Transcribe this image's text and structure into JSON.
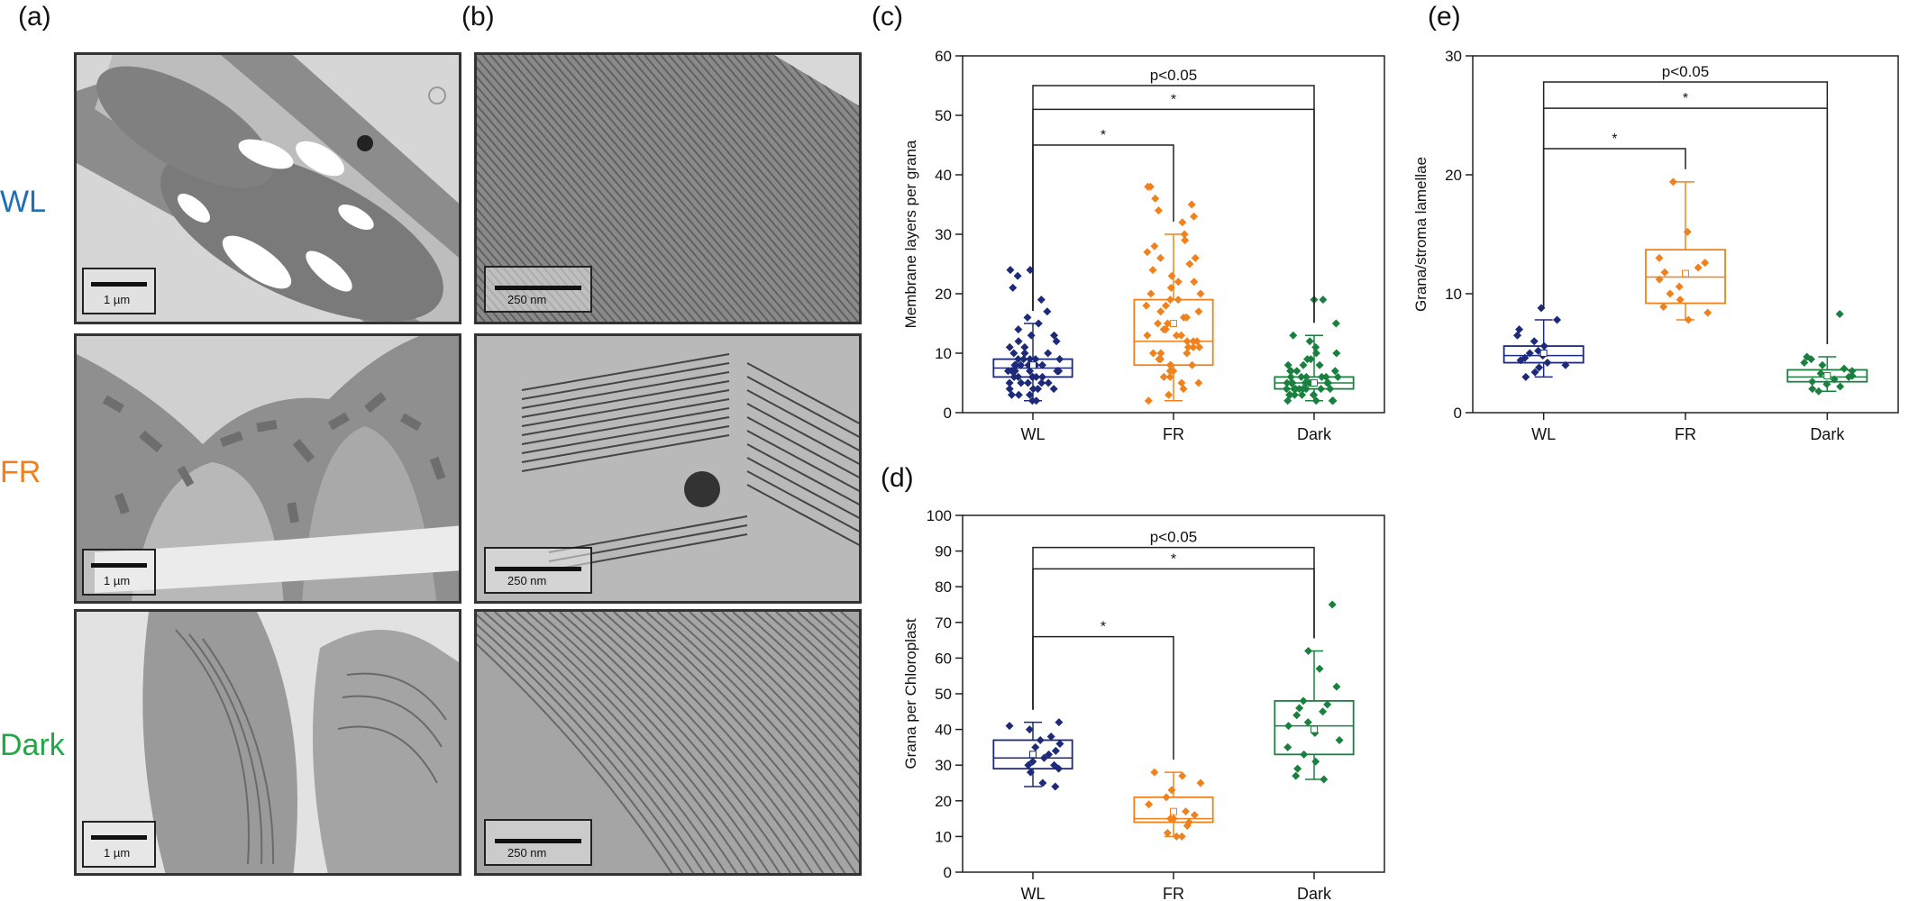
{
  "panel_letters": {
    "a": "(a)",
    "b": "(b)",
    "c": "(c)",
    "d": "(d)",
    "e": "(e)"
  },
  "conditions": {
    "wl": {
      "label": "WL",
      "color": "#1f6fb5"
    },
    "fr": {
      "label": "FR",
      "color": "#f07f1c"
    },
    "dark": {
      "label": "Dark",
      "color": "#22a646"
    }
  },
  "scale_labels": {
    "a_wl": "1 µm",
    "a_fr": "1 µm",
    "a_dark": "1 µm",
    "b_wl": "250 nm",
    "b_fr": "250 nm",
    "b_dark": "250 nm"
  },
  "series_colors": {
    "WL": "#1d2a7a",
    "FR": "#f0821e",
    "Dark": "#1a8040"
  },
  "chart_data": [
    {
      "panel": "c",
      "type": "box",
      "ylabel": "Membrane layers per grana",
      "categories": [
        "WL",
        "FR",
        "Dark"
      ],
      "ylim": [
        0,
        60
      ],
      "yticks": [
        0,
        10,
        20,
        30,
        40,
        50,
        60
      ],
      "boxes": [
        {
          "name": "WL",
          "q1": 6,
          "median": 7.5,
          "q3": 9,
          "mean": 8,
          "whisker_low": 2,
          "whisker_high": 15,
          "points": [
            2,
            2,
            3,
            3,
            3,
            4,
            4,
            4,
            4,
            5,
            5,
            5,
            5,
            5,
            6,
            6,
            6,
            6,
            6,
            6,
            7,
            7,
            7,
            7,
            7,
            7,
            7,
            8,
            8,
            8,
            8,
            8,
            8,
            9,
            9,
            9,
            9,
            9,
            10,
            10,
            10,
            11,
            11,
            12,
            12,
            13,
            13,
            14,
            15,
            16,
            17,
            19,
            21,
            23,
            24,
            24
          ]
        },
        {
          "name": "FR",
          "q1": 8,
          "median": 12,
          "q3": 19,
          "mean": 15,
          "whisker_low": 2,
          "whisker_high": 30,
          "points": [
            2,
            3,
            4,
            5,
            5,
            6,
            6,
            7,
            7,
            8,
            8,
            8,
            9,
            9,
            10,
            10,
            10,
            11,
            11,
            11,
            12,
            12,
            12,
            13,
            13,
            13,
            14,
            14,
            15,
            15,
            16,
            16,
            17,
            17,
            18,
            18,
            19,
            19,
            20,
            20,
            21,
            22,
            22,
            23,
            24,
            25,
            26,
            26,
            27,
            28,
            29,
            30,
            32,
            33,
            34,
            35,
            36,
            38,
            38
          ]
        },
        {
          "name": "Dark",
          "q1": 4,
          "median": 5,
          "q3": 6,
          "mean": 5,
          "whisker_low": 2,
          "whisker_high": 13,
          "points": [
            2,
            2,
            2,
            2,
            3,
            3,
            3,
            3,
            3,
            3,
            4,
            4,
            4,
            4,
            4,
            4,
            4,
            4,
            5,
            5,
            5,
            5,
            5,
            5,
            5,
            5,
            5,
            5,
            6,
            6,
            6,
            6,
            6,
            6,
            7,
            7,
            7,
            7,
            8,
            8,
            8,
            9,
            9,
            10,
            10,
            11,
            12,
            13,
            15,
            19,
            19
          ]
        }
      ],
      "comparisons": [
        {
          "from": "WL",
          "to": "FR",
          "y": 45,
          "label": "*"
        },
        {
          "from": "WL",
          "to": "Dark",
          "y": 51,
          "label": "*"
        },
        {
          "from": "WL",
          "to": "Dark",
          "y": 55,
          "label": "p<0.05"
        }
      ]
    },
    {
      "panel": "d",
      "type": "box",
      "ylabel": "Grana per Chloroplast",
      "categories": [
        "WL",
        "FR",
        "Dark"
      ],
      "ylim": [
        0,
        100
      ],
      "yticks": [
        0,
        10,
        20,
        30,
        40,
        50,
        60,
        70,
        80,
        90,
        100
      ],
      "boxes": [
        {
          "name": "WL",
          "q1": 29,
          "median": 32,
          "q3": 37,
          "mean": 33,
          "whisker_low": 24,
          "whisker_high": 42,
          "points": [
            24,
            25,
            28,
            29,
            30,
            30,
            31,
            32,
            33,
            34,
            35,
            36,
            37,
            38,
            40,
            41,
            42
          ]
        },
        {
          "name": "FR",
          "q1": 14,
          "median": 15,
          "q3": 21,
          "mean": 17,
          "whisker_low": 10,
          "whisker_high": 28,
          "points": [
            10,
            10,
            11,
            13,
            14,
            15,
            15,
            16,
            17,
            19,
            21,
            23,
            25,
            27,
            28
          ]
        },
        {
          "name": "Dark",
          "q1": 33,
          "median": 41,
          "q3": 48,
          "mean": 40,
          "whisker_low": 26,
          "whisker_high": 62,
          "points": [
            26,
            27,
            29,
            31,
            33,
            35,
            37,
            39,
            41,
            42,
            44,
            45,
            46,
            47,
            48,
            52,
            57,
            62,
            75
          ]
        }
      ],
      "comparisons": [
        {
          "from": "WL",
          "to": "FR",
          "y": 66,
          "label": "*"
        },
        {
          "from": "WL",
          "to": "Dark",
          "y": 85,
          "label": "*"
        },
        {
          "from": "WL",
          "to": "Dark",
          "y": 91,
          "label": "p<0.05"
        }
      ]
    },
    {
      "panel": "e",
      "type": "box",
      "ylabel": "Grana/stroma lamellae",
      "categories": [
        "WL",
        "FR",
        "Dark"
      ],
      "ylim": [
        0,
        30
      ],
      "yticks": [
        0,
        10,
        20,
        30
      ],
      "boxes": [
        {
          "name": "WL",
          "q1": 4.2,
          "median": 4.8,
          "q3": 5.6,
          "mean": 5,
          "whisker_low": 3,
          "whisker_high": 7.8,
          "points": [
            3,
            3.4,
            3.8,
            4,
            4.2,
            4.4,
            4.6,
            4.8,
            5,
            5.2,
            5.6,
            6,
            6.5,
            7,
            7.8,
            8.8
          ]
        },
        {
          "name": "FR",
          "q1": 9.2,
          "median": 11.4,
          "q3": 13.7,
          "mean": 11.7,
          "whisker_low": 7.8,
          "whisker_high": 19.4,
          "points": [
            7.8,
            8.4,
            8.9,
            9.5,
            10,
            10.6,
            11.2,
            11.8,
            12.2,
            12.6,
            13,
            15.2,
            19.4
          ]
        },
        {
          "name": "Dark",
          "q1": 2.6,
          "median": 3,
          "q3": 3.6,
          "mean": 3.1,
          "whisker_low": 1.8,
          "whisker_high": 4.7,
          "points": [
            1.8,
            2,
            2.2,
            2.4,
            2.6,
            2.8,
            3,
            3.1,
            3.3,
            3.5,
            3.7,
            4,
            4.2,
            4.5,
            4.7,
            8.3
          ]
        }
      ],
      "comparisons": [
        {
          "from": "WL",
          "to": "FR",
          "y": 22.2,
          "label": "*"
        },
        {
          "from": "WL",
          "to": "Dark",
          "y": 25.6,
          "label": "*"
        },
        {
          "from": "WL",
          "to": "Dark",
          "y": 27.8,
          "label": "p<0.05"
        }
      ]
    }
  ]
}
